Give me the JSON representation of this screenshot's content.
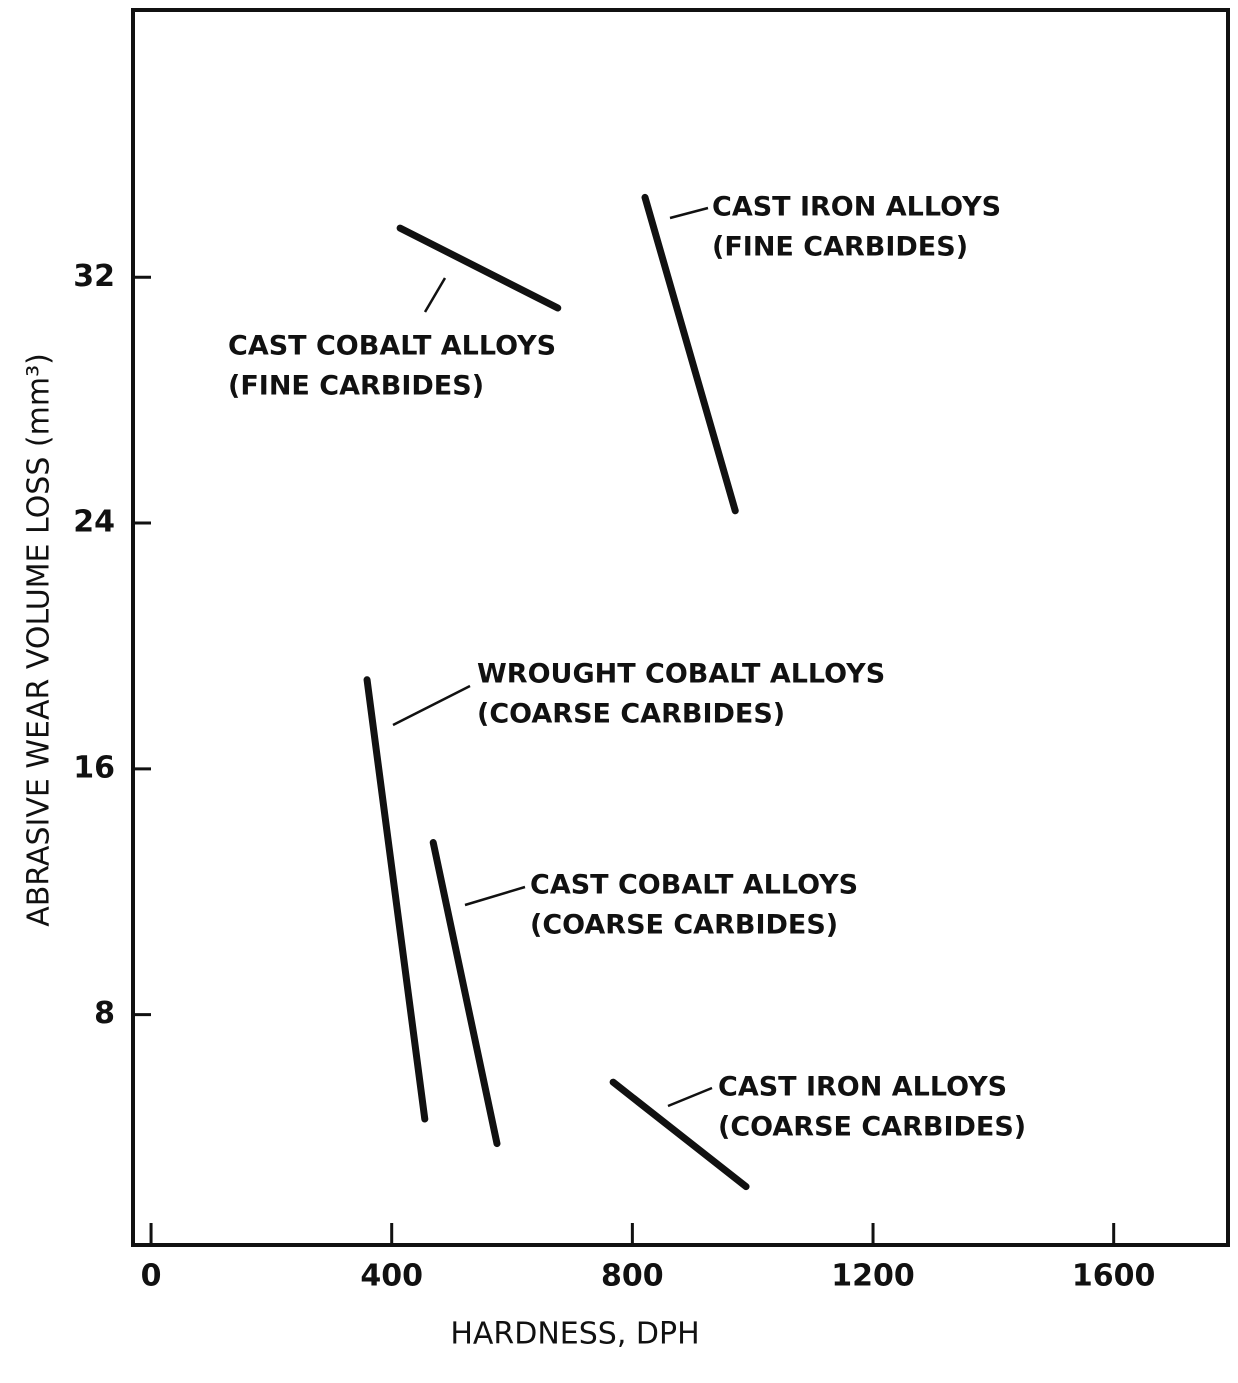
{
  "chart_data": {
    "type": "line",
    "xlabel": "HARDNESS, DPH",
    "ylabel": "ABRASIVE WEAR VOLUME LOSS (mm³)",
    "xlim": [
      -30,
      1790
    ],
    "xticks": [
      0,
      400,
      800,
      1200,
      1600
    ],
    "ylim": [
      0.5,
      40.7
    ],
    "yticks": [
      8,
      16,
      24,
      32
    ],
    "color": "#111111",
    "series": [
      {
        "name": "CAST IRON ALLOYS",
        "detail": "(FINE CARBIDES)",
        "x": [
          821,
          971
        ],
        "values": [
          34.6,
          24.4
        ]
      },
      {
        "name": "CAST COBALT ALLOYS",
        "detail": "(FINE CARBIDES)",
        "x": [
          414,
          676
        ],
        "values": [
          33.6,
          31.0
        ]
      },
      {
        "name": "WROUGHT COBALT ALLOYS",
        "detail": "(COARSE CARBIDES)",
        "x": [
          359,
          455
        ],
        "values": [
          18.9,
          4.6
        ]
      },
      {
        "name": "CAST COBALT ALLOYS",
        "detail": "(COARSE CARBIDES)",
        "x": [
          469,
          575
        ],
        "values": [
          13.6,
          3.8
        ]
      },
      {
        "name": "CAST IRON ALLOYS",
        "detail": "(COARSE CARBIDES)",
        "x": [
          768,
          989
        ],
        "values": [
          5.8,
          2.4
        ]
      }
    ]
  }
}
